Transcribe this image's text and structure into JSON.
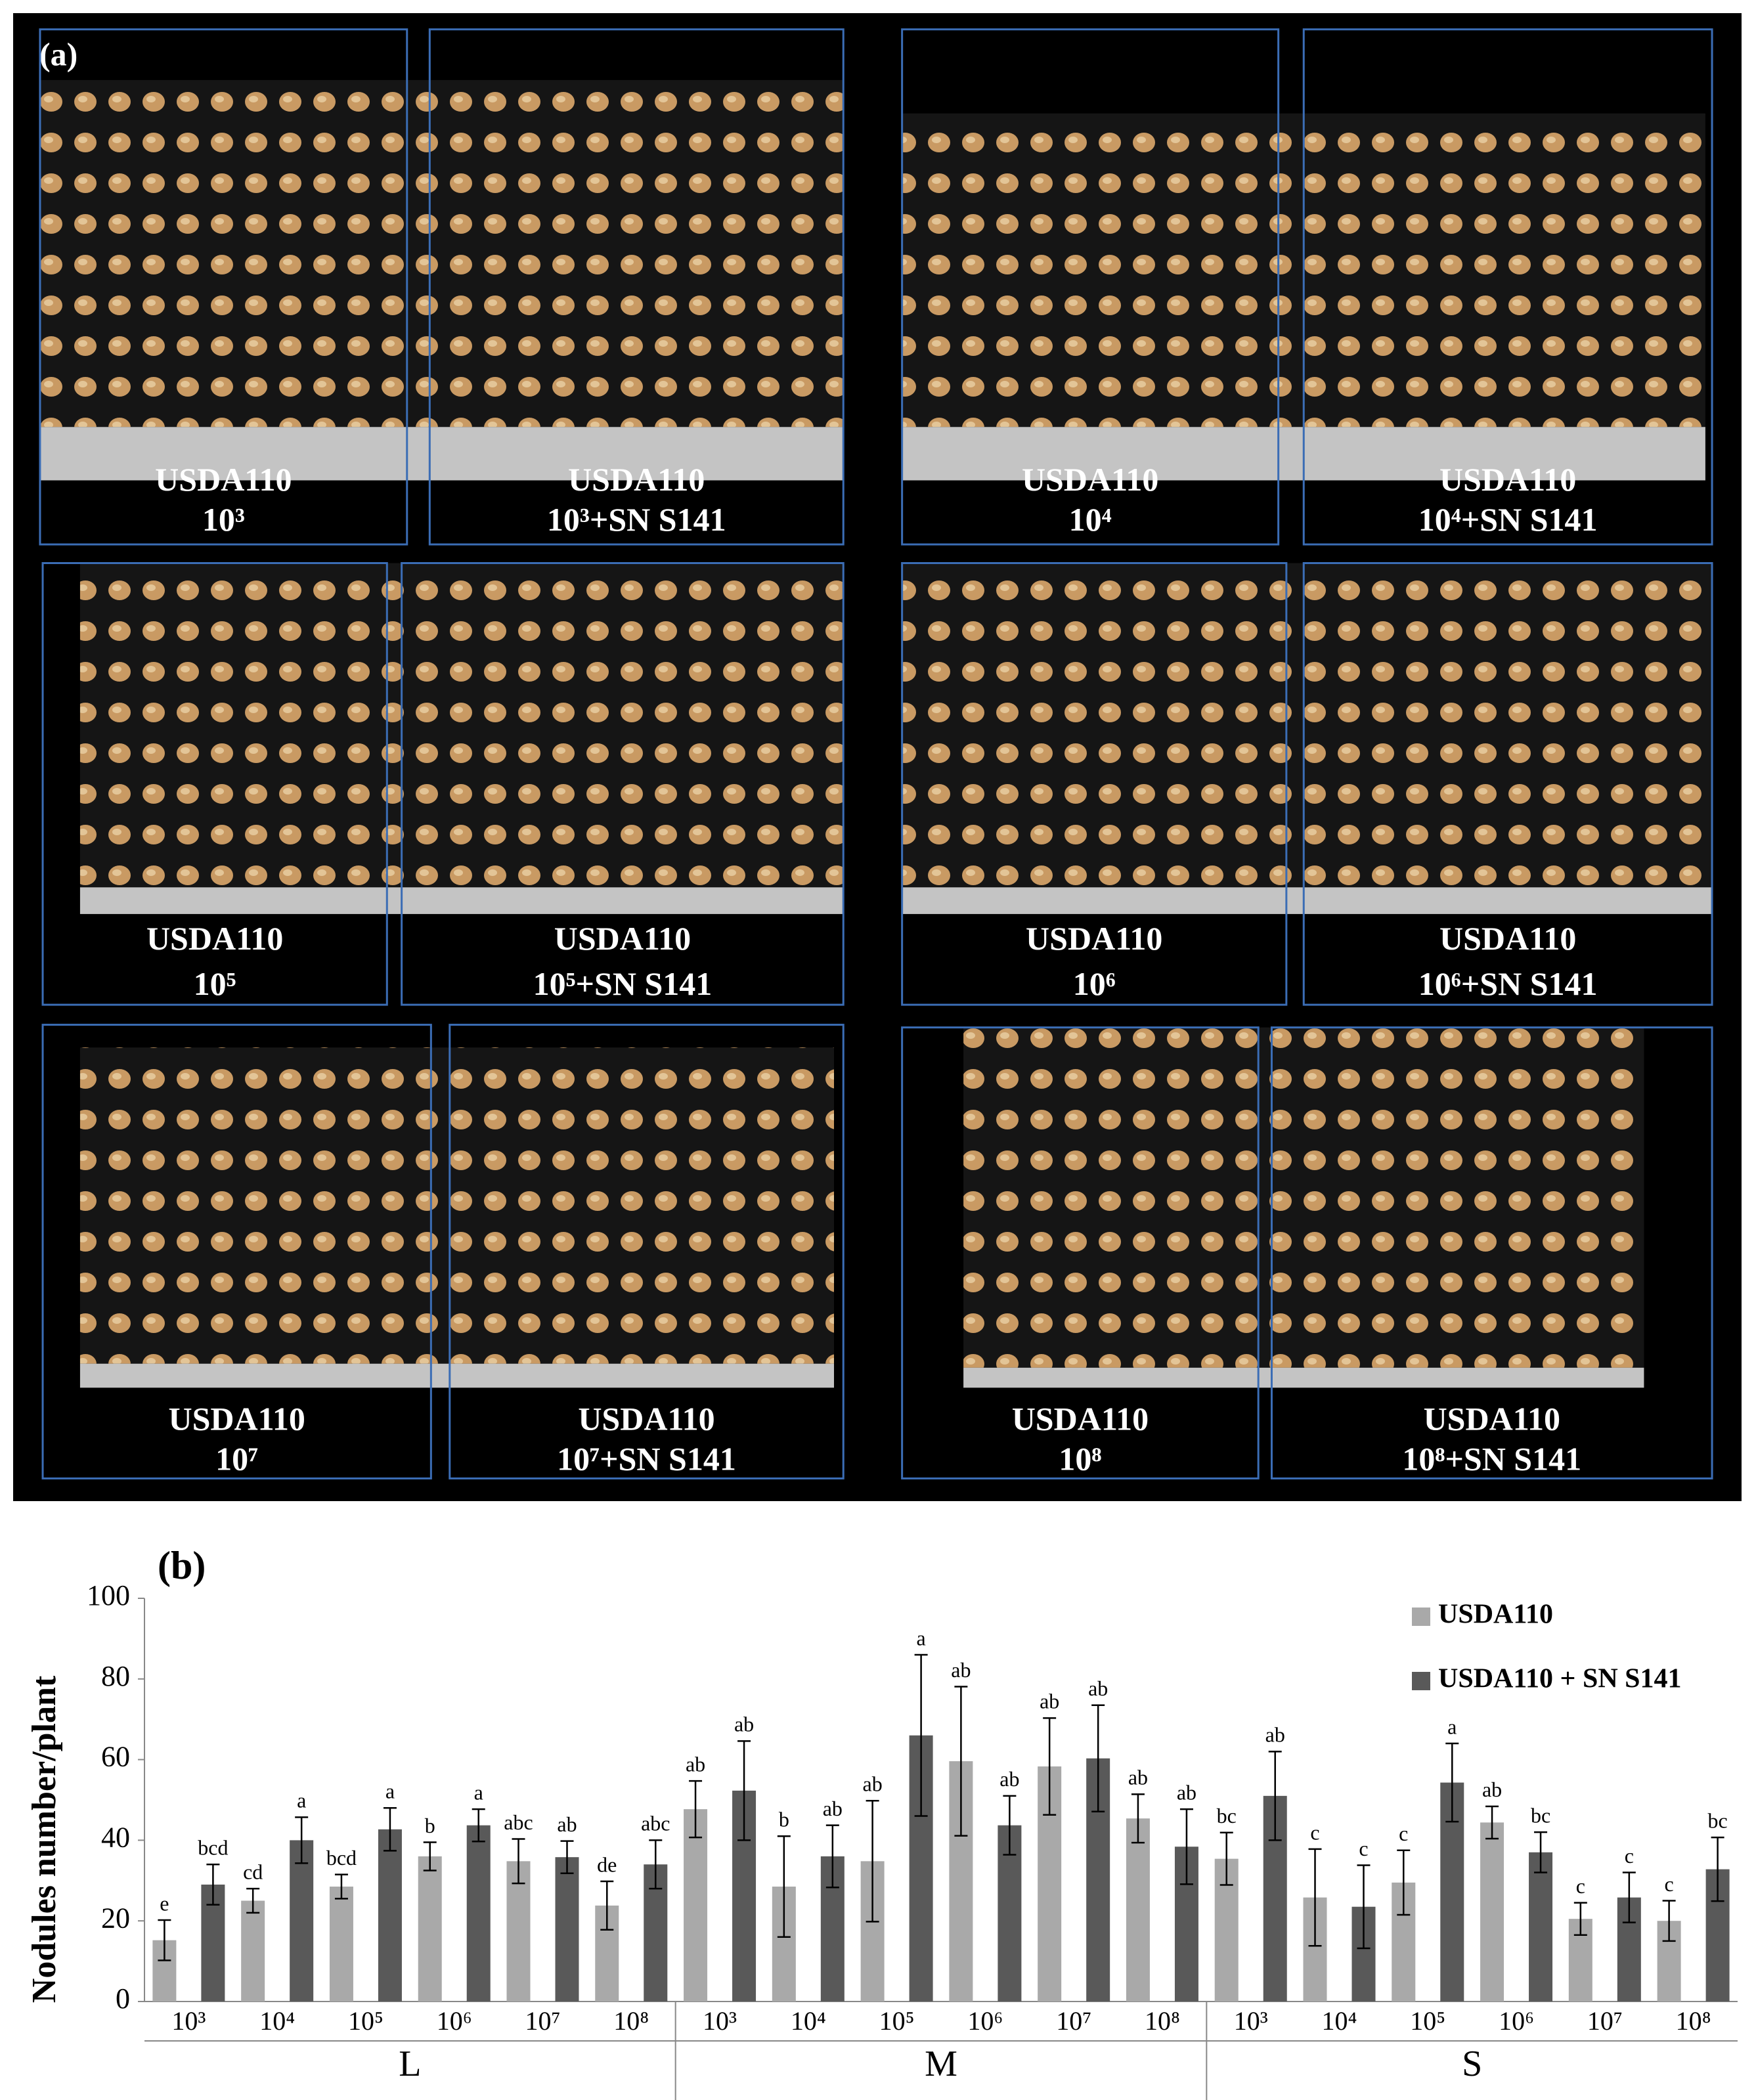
{
  "panel_a": {
    "label": "(a)",
    "panels": [
      {
        "strain": "USDA110",
        "dose": "10³"
      },
      {
        "strain": "USDA110",
        "dose": "10³+SN S141"
      },
      {
        "strain": "USDA110",
        "dose": "10⁴"
      },
      {
        "strain": "USDA110",
        "dose": "10⁴+SN S141"
      },
      {
        "strain": "USDA110",
        "dose": "10⁵"
      },
      {
        "strain": "USDA110",
        "dose": "10⁵+SN S141"
      },
      {
        "strain": "USDA110",
        "dose": "10⁶"
      },
      {
        "strain": "USDA110",
        "dose": "10⁶+SN S141"
      },
      {
        "strain": "USDA110",
        "dose": "10⁷"
      },
      {
        "strain": "USDA110",
        "dose": "10⁷+SN S141"
      },
      {
        "strain": "USDA110",
        "dose": "10⁸"
      },
      {
        "strain": "USDA110",
        "dose": "10⁸+SN S141"
      }
    ]
  },
  "chart_data": {
    "type": "bar",
    "panel_label": "(b)",
    "y_label": "Nodules number/plant",
    "categories": [
      "10³",
      "10⁴",
      "10⁵",
      "10⁶",
      "10⁷",
      "10⁸",
      "10³",
      "10⁴",
      "10⁵",
      "10⁶",
      "10⁷",
      "10⁸",
      "10³",
      "10⁴",
      "10⁵",
      "10⁶",
      "10⁷",
      "10⁸"
    ],
    "groups": [
      "L",
      "M",
      "S"
    ],
    "series": [
      {
        "name": "USDA110",
        "color": "#a9a9a9",
        "values": [
          15.2,
          25,
          28.5,
          36,
          34.8,
          23.8,
          47.7,
          28.5,
          34.8,
          59.6,
          58.3,
          45.4,
          35.4,
          25.8,
          29.5,
          44.4,
          20.5,
          20
        ],
        "errors": [
          5,
          3,
          3,
          3.5,
          5.5,
          6,
          7,
          12.5,
          15,
          18.5,
          12,
          6,
          6.5,
          12,
          8,
          4,
          4,
          5
        ],
        "letters": [
          "e",
          "cd",
          "bcd",
          "b",
          "abc",
          "de",
          "ab",
          "b",
          "ab",
          "ab",
          "ab",
          "ab",
          "bc",
          "c",
          "c",
          "ab",
          "c",
          "c"
        ]
      },
      {
        "name": "USDA110 + SN S141",
        "color": "#595959",
        "values": [
          29,
          40,
          42.7,
          43.7,
          35.8,
          34,
          52.3,
          36,
          66,
          43.7,
          60.3,
          38.4,
          51,
          23.5,
          54.3,
          37,
          25.8,
          32.8
        ],
        "errors": [
          5,
          5.7,
          5.3,
          4,
          4,
          6,
          12.3,
          7.7,
          20,
          7.3,
          13.2,
          9.3,
          11,
          10.3,
          9.7,
          5,
          6.2,
          7.9
        ],
        "letters": [
          "bcd",
          "a",
          "a",
          "a",
          "ab",
          "abc",
          "ab",
          "ab",
          "a",
          "ab",
          "ab",
          "ab",
          "ab",
          "c",
          "a",
          "bc",
          "c",
          "bc"
        ]
      }
    ],
    "ylim": [
      0,
      100
    ],
    "yticks": [
      0,
      20,
      40,
      60,
      80,
      100
    ],
    "grid": false,
    "legend": "top-right"
  }
}
